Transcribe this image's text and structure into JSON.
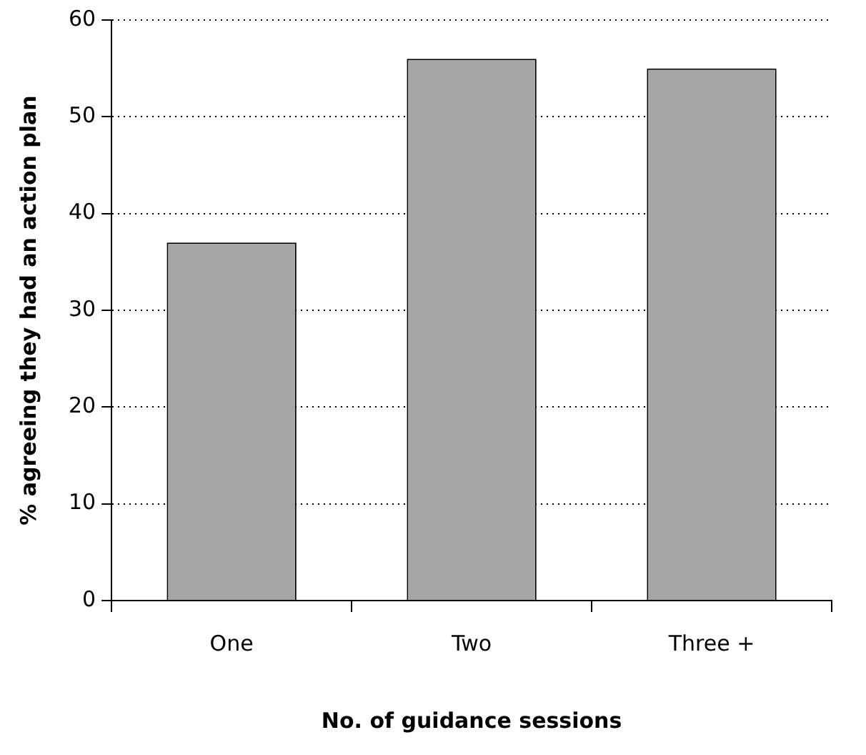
{
  "chart_data": {
    "type": "bar",
    "xlabel": "No. of guidance sessions",
    "ylabel": "% agreeing they had an action plan",
    "categories": [
      "One",
      "Two",
      "Three +"
    ],
    "values": [
      37,
      56,
      55
    ],
    "color": "#a6a6a6",
    "ylim": [
      0,
      60
    ],
    "yticks": [
      0,
      10,
      20,
      30,
      40,
      50,
      60
    ],
    "grid": "y",
    "legend": false
  }
}
